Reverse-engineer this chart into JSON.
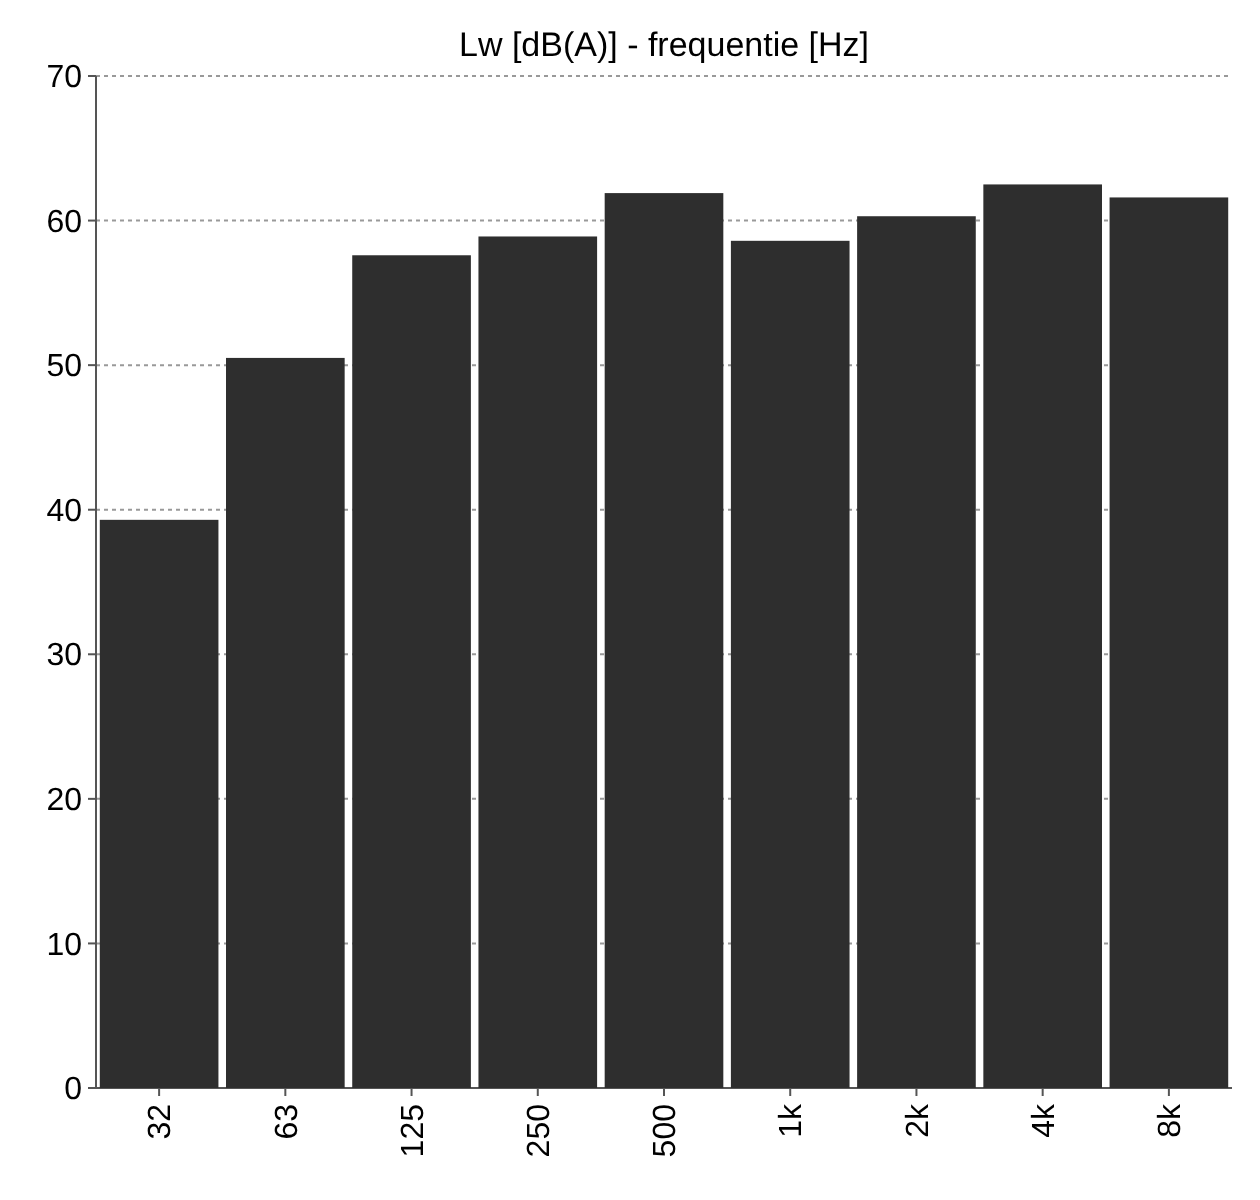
{
  "chart_data": {
    "type": "bar",
    "title": "Lw [dB(A)] - frequentie [Hz]",
    "categories": [
      "32",
      "63",
      "125",
      "250",
      "500",
      "1k",
      "2k",
      "4k",
      "8k"
    ],
    "values": [
      39.3,
      50.5,
      57.6,
      58.9,
      61.9,
      58.6,
      60.3,
      62.5,
      61.6
    ],
    "color": "#2e2e2e",
    "ylim": [
      0,
      70
    ],
    "yticks": [
      0,
      10,
      20,
      30,
      40,
      50,
      60,
      70
    ],
    "grid": "y"
  }
}
